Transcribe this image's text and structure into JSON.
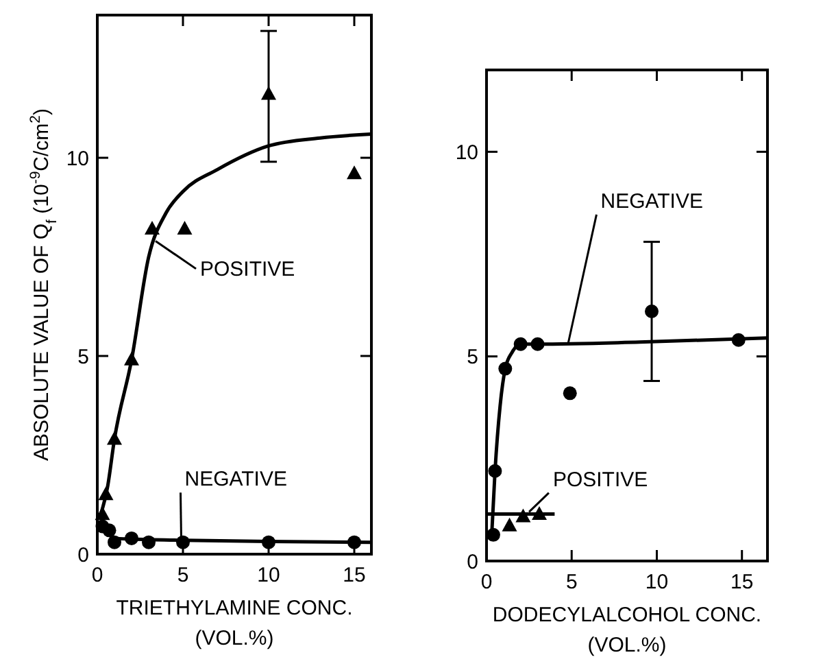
{
  "chart_data": [
    {
      "type": "scatter",
      "xlabel": "TRIETHYLAMINE CONC.\n(VOL.%)",
      "ylabel": "ABSOLUTE VALUE OF Q$_{f}$ (10$^{-9}$C/cm$^{2}$)",
      "xlim": [
        0,
        16
      ],
      "ylim": [
        0,
        13.6
      ],
      "xticks": [
        0,
        5,
        10,
        15
      ],
      "yticks": [
        0,
        5,
        10
      ],
      "grid": false,
      "series": [
        {
          "type": "scatter",
          "marker": "triangle",
          "color": "#000000",
          "x": [
            0.3,
            0.5,
            1,
            2,
            3.2,
            5.1,
            10,
            15
          ],
          "values": [
            1.0,
            1.5,
            2.9,
            4.9,
            8.2,
            8.2,
            11.6,
            9.6
          ],
          "errors": [
            null,
            null,
            null,
            null,
            null,
            null,
            [
              9.9,
              13.2
            ],
            null
          ]
        },
        {
          "type": "scatter",
          "marker": "circle",
          "color": "#000000",
          "x": [
            0.3,
            0.7,
            1,
            2,
            3,
            5,
            10,
            15
          ],
          "values": [
            0.7,
            0.6,
            0.3,
            0.4,
            0.3,
            0.3,
            0.3,
            0.3
          ]
        },
        {
          "type": "line",
          "name": "POSITIVE",
          "marker": "none",
          "line_style": "solid",
          "color": "#000000",
          "x": [
            0.2,
            0.6,
            1,
            2,
            3,
            4,
            5,
            7,
            10,
            13,
            16
          ],
          "values": [
            1.0,
            1.7,
            2.9,
            4.9,
            7.5,
            8.6,
            9.15,
            9.7,
            10.3,
            10.5,
            10.6
          ]
        },
        {
          "type": "line",
          "name": "NEGATIVE",
          "marker": "none",
          "line_style": "solid",
          "color": "#000000",
          "x": [
            0.2,
            0.6,
            1,
            2,
            5,
            10,
            16
          ],
          "values": [
            0.7,
            0.55,
            0.4,
            0.38,
            0.35,
            0.32,
            0.3
          ]
        }
      ]
    },
    {
      "type": "scatter",
      "xlabel": "DODECYLALCOHOL CONC.\n(VOL.%)",
      "xlim": [
        0,
        16.5
      ],
      "ylim": [
        0,
        12
      ],
      "xticks": [
        0,
        5,
        10,
        15
      ],
      "yticks": [
        0,
        5,
        10
      ],
      "grid": false,
      "series": [
        {
          "type": "scatter",
          "marker": "circle",
          "color": "#000000",
          "x": [
            0.4,
            0.5,
            1.1,
            2,
            3,
            4.9,
            9.7,
            14.8
          ],
          "values": [
            0.64,
            2.2,
            4.7,
            5.3,
            5.3,
            4.1,
            6.1,
            5.4
          ],
          "errors": [
            null,
            null,
            null,
            null,
            null,
            null,
            [
              4.4,
              7.8
            ],
            null
          ]
        },
        {
          "type": "scatter",
          "marker": "triangle",
          "color": "#000000",
          "x": [
            1.35,
            2.15,
            3.1
          ],
          "values": [
            0.86,
            1.08,
            1.14
          ]
        },
        {
          "type": "line",
          "name": "NEGATIVE",
          "marker": "none",
          "line_style": "solid",
          "color": "#000000",
          "x": [
            0.3,
            0.5,
            0.8,
            1.1,
            1.5,
            2,
            3,
            9,
            16.5
          ],
          "values": [
            0.6,
            2.2,
            3.8,
            4.7,
            5.1,
            5.3,
            5.3,
            5.35,
            5.45
          ]
        },
        {
          "type": "line",
          "name": "POSITIVE",
          "marker": "none",
          "line_style": "solid",
          "color": "#000000",
          "x": [
            0,
            4
          ],
          "values": [
            1.15,
            1.15
          ]
        }
      ]
    }
  ]
}
